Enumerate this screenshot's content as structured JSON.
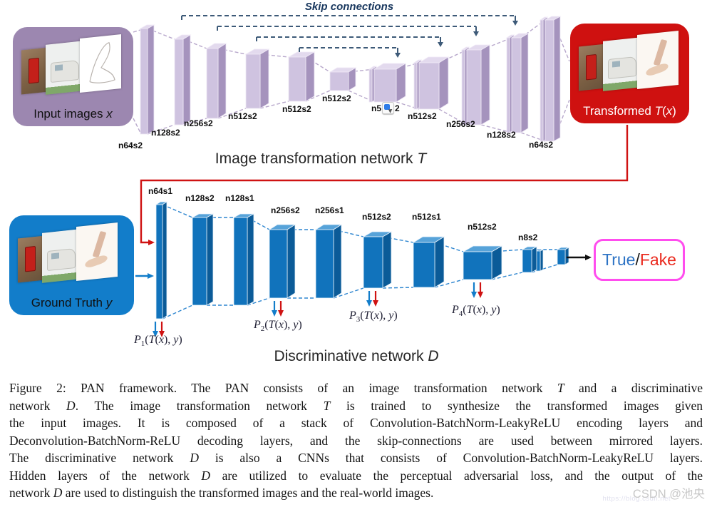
{
  "figure": {
    "skip_connections_label": "Skip connections",
    "transform_title": [
      {
        "t": "Image transformation network "
      },
      {
        "t": "T",
        "i": true
      }
    ],
    "discriminative_title": [
      {
        "t": "Discriminative network "
      },
      {
        "t": "D",
        "i": true
      }
    ],
    "input_box_label": [
      {
        "t": "Input images "
      },
      {
        "t": "x",
        "i": true
      }
    ],
    "transformed_box_label": [
      {
        "t": "Transformed "
      },
      {
        "t": "T",
        "i": true
      },
      {
        "t": "("
      },
      {
        "t": "x",
        "i": true
      },
      {
        "t": ")"
      }
    ],
    "ground_truth_box_label": [
      {
        "t": "Ground Truth "
      },
      {
        "t": "y",
        "i": true
      }
    ],
    "true_fake": {
      "true_text": "True",
      "separator": "/",
      "fake_text": "Fake"
    },
    "transform_blocks": [
      "n64s2",
      "n128s2",
      "n256s2",
      "n512s2",
      "n512s2",
      "n512s2",
      {
        "pre": "n5",
        "post": "2",
        "icon": "translate-popup-icon"
      },
      "n512s2",
      "n256s2",
      "n128s2",
      "n64s2"
    ],
    "discriminative_blocks": [
      "n64s1",
      "n128s2",
      "n128s1",
      "n256s2",
      "n256s1",
      "n512s2",
      "n512s1",
      "n512s2",
      "n8s2"
    ],
    "perceptual_labels": [
      [
        {
          "t": "P",
          "i": true
        },
        {
          "t": "1",
          "sub": true
        },
        {
          "t": "("
        },
        {
          "t": "T",
          "i": true
        },
        {
          "t": "("
        },
        {
          "t": "x",
          "i": true
        },
        {
          "t": "), "
        },
        {
          "t": "y",
          "i": true
        },
        {
          "t": ")"
        }
      ],
      [
        {
          "t": "P",
          "i": true
        },
        {
          "t": "2",
          "sub": true
        },
        {
          "t": "("
        },
        {
          "t": "T",
          "i": true
        },
        {
          "t": "("
        },
        {
          "t": "x",
          "i": true
        },
        {
          "t": "), "
        },
        {
          "t": "y",
          "i": true
        },
        {
          "t": ")"
        }
      ],
      [
        {
          "t": "P",
          "i": true
        },
        {
          "t": "3",
          "sub": true
        },
        {
          "t": "("
        },
        {
          "t": "T",
          "i": true
        },
        {
          "t": "("
        },
        {
          "t": "x",
          "i": true
        },
        {
          "t": "), "
        },
        {
          "t": "y",
          "i": true
        },
        {
          "t": ")"
        }
      ],
      [
        {
          "t": "P",
          "i": true
        },
        {
          "t": "4",
          "sub": true
        },
        {
          "t": "("
        },
        {
          "t": "T",
          "i": true
        },
        {
          "t": "("
        },
        {
          "t": "x",
          "i": true
        },
        {
          "t": "), "
        },
        {
          "t": "y",
          "i": true
        },
        {
          "t": ")"
        }
      ]
    ]
  },
  "caption_lines": [
    [
      {
        "t": "Figure 2: PAN framework.  The PAN consists of an image transformation network "
      },
      {
        "t": "T",
        "i": true
      },
      {
        "t": " and a discriminative"
      }
    ],
    [
      {
        "t": "network "
      },
      {
        "t": "D",
        "i": true
      },
      {
        "t": ".  The image transformation network "
      },
      {
        "t": "T",
        "i": true
      },
      {
        "t": " is trained to synthesize the transformed images given"
      }
    ],
    [
      {
        "t": "the input images.  It is composed of a stack of Convolution-BatchNorm-LeakyReLU encoding layers and"
      }
    ],
    [
      {
        "t": "Deconvolution-BatchNorm-ReLU decoding layers, and the skip-connections are used between mirrored layers."
      }
    ],
    [
      {
        "t": "The discriminative network "
      },
      {
        "t": "D",
        "i": true
      },
      {
        "t": " is also a CNNs that consists of Convolution-BatchNorm-LeakyReLU layers."
      }
    ],
    [
      {
        "t": "Hidden layers of the network "
      },
      {
        "t": "D",
        "i": true
      },
      {
        "t": " are utilized to evaluate the perceptual adversarial loss, and the output of the"
      }
    ],
    [
      {
        "t": "network "
      },
      {
        "t": "D",
        "i": true
      },
      {
        "t": " are used to distinguish the transformed images and the real-world images."
      }
    ]
  ],
  "watermark": {
    "brand": "CSDN @池央",
    "url": "https://blog.csdn.net"
  },
  "colors": {
    "purple_box": "#9c87b0",
    "purple_front": "#cfc3e0",
    "purple_side": "#a593bd",
    "purple_top": "#e3daee",
    "purple_dash": "#b7a7cb",
    "blue_box": "#127dca",
    "blue_front": "#1173bc",
    "blue_side": "#0b5b98",
    "blue_top": "#57a3d9",
    "blue_dash": "#2e86d0",
    "red_accent": "#cf1212",
    "skip_dash": "#3d5a78",
    "magenta_border": "#ff4dee",
    "true_color": "#2e74c5",
    "fake_color": "#ea2a1e"
  }
}
